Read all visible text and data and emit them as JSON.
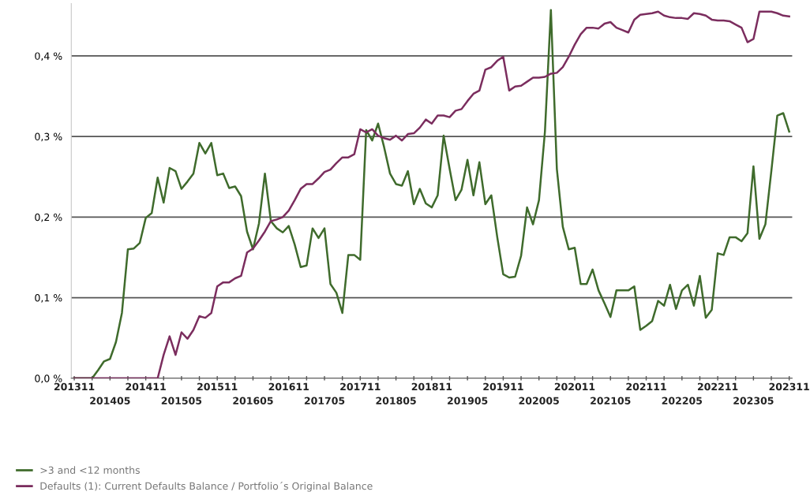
{
  "chart_data": {
    "type": "line",
    "categories": [
      "201311",
      null,
      null,
      null,
      null,
      null,
      "201405",
      null,
      null,
      null,
      null,
      null,
      "201411",
      null,
      null,
      null,
      null,
      null,
      "201505",
      null,
      null,
      null,
      null,
      null,
      "201511",
      null,
      null,
      null,
      null,
      null,
      "201605",
      null,
      null,
      null,
      null,
      null,
      "201611",
      null,
      null,
      null,
      null,
      null,
      "201705",
      null,
      null,
      null,
      null,
      null,
      "201711",
      null,
      null,
      null,
      null,
      null,
      "201805",
      null,
      null,
      null,
      null,
      null,
      "201811",
      null,
      null,
      null,
      null,
      null,
      "201905",
      null,
      null,
      null,
      null,
      null,
      "201911",
      null,
      null,
      null,
      null,
      null,
      "202005",
      null,
      null,
      null,
      null,
      null,
      "202011",
      null,
      null,
      null,
      null,
      null,
      "202105",
      null,
      null,
      null,
      null,
      null,
      "202111",
      null,
      null,
      null,
      null,
      null,
      "202205",
      null,
      null,
      null,
      null,
      null,
      "202211",
      null,
      null,
      null,
      null,
      null,
      "202305",
      null,
      null,
      null,
      null,
      null,
      "202311"
    ],
    "series": [
      {
        "name": ">3 and <12 months",
        "color": "#3f6b2c",
        "values": [
          0,
          0,
          0,
          0,
          0.01,
          0.021,
          0.024,
          0.045,
          0.081,
          0.16,
          0.161,
          0.168,
          0.199,
          0.205,
          0.249,
          0.218,
          0.261,
          0.257,
          0.235,
          0.244,
          0.254,
          0.292,
          0.279,
          0.292,
          0.252,
          0.254,
          0.236,
          0.238,
          0.226,
          0.182,
          0.16,
          0.192,
          0.254,
          0.195,
          0.186,
          0.181,
          0.189,
          0.166,
          0.138,
          0.14,
          0.186,
          0.174,
          0.186,
          0.117,
          0.106,
          0.081,
          0.153,
          0.153,
          0.147,
          0.308,
          0.295,
          0.316,
          0.287,
          0.254,
          0.241,
          0.239,
          0.257,
          0.216,
          0.235,
          0.217,
          0.212,
          0.227,
          0.301,
          0.26,
          0.221,
          0.234,
          0.271,
          0.227,
          0.268,
          0.216,
          0.227,
          0.175,
          0.129,
          0.125,
          0.126,
          0.152,
          0.212,
          0.191,
          0.221,
          0.306,
          0.457,
          0.26,
          0.188,
          0.16,
          0.162,
          0.117,
          0.117,
          0.135,
          0.109,
          0.093,
          0.076,
          0.109,
          0.109,
          0.109,
          0.114,
          0.06,
          0.065,
          0.071,
          0.096,
          0.09,
          0.116,
          0.086,
          0.109,
          0.116,
          0.09,
          0.127,
          0.075,
          0.085,
          0.155,
          0.153,
          0.175,
          0.175,
          0.17,
          0.18,
          0.263,
          0.173,
          0.191,
          0.257,
          0.326,
          0.329,
          0.306
        ]
      },
      {
        "name": "Defaults (1): Current Defaults Balance / Portfolio´s Original Balance",
        "color": "#7b2d5e",
        "values": [
          0,
          0,
          0,
          0,
          0,
          0,
          0,
          0,
          0,
          0,
          0,
          0,
          0,
          0,
          0,
          0.029,
          0.052,
          0.029,
          0.057,
          0.049,
          0.06,
          0.077,
          0.075,
          0.081,
          0.114,
          0.119,
          0.119,
          0.124,
          0.127,
          0.156,
          0.161,
          0.171,
          0.182,
          0.195,
          0.197,
          0.2,
          0.208,
          0.221,
          0.235,
          0.241,
          0.241,
          0.248,
          0.256,
          0.259,
          0.267,
          0.274,
          0.274,
          0.278,
          0.309,
          0.305,
          0.309,
          0.301,
          0.298,
          0.296,
          0.301,
          0.295,
          0.303,
          0.304,
          0.311,
          0.321,
          0.316,
          0.326,
          0.326,
          0.324,
          0.332,
          0.334,
          0.344,
          0.353,
          0.357,
          0.383,
          0.386,
          0.394,
          0.399,
          0.357,
          0.362,
          0.363,
          0.368,
          0.373,
          0.373,
          0.374,
          0.378,
          0.379,
          0.386,
          0.399,
          0.414,
          0.427,
          0.435,
          0.435,
          0.434,
          0.44,
          0.442,
          0.435,
          0.432,
          0.429,
          0.445,
          0.451,
          0.452,
          0.453,
          0.455,
          0.45,
          0.448,
          0.447,
          0.447,
          0.446,
          0.453,
          0.452,
          0.45,
          0.445,
          0.444,
          0.444,
          0.443,
          0.439,
          0.435,
          0.417,
          0.421,
          0.455,
          0.455,
          0.455,
          0.453,
          0.45,
          0.449
        ]
      }
    ],
    "ylim": [
      0,
      0.465
    ],
    "yticks": [
      {
        "value": 0,
        "label": "0,0 %"
      },
      {
        "value": 0.1,
        "label": "0,1 %"
      },
      {
        "value": 0.2,
        "label": "0,2 %"
      },
      {
        "value": 0.3,
        "label": "0,3 %"
      },
      {
        "value": 0.4,
        "label": "0,4 %"
      }
    ],
    "grid": "y",
    "legend": "bottom left",
    "marker": "none",
    "line_style": "solid"
  }
}
